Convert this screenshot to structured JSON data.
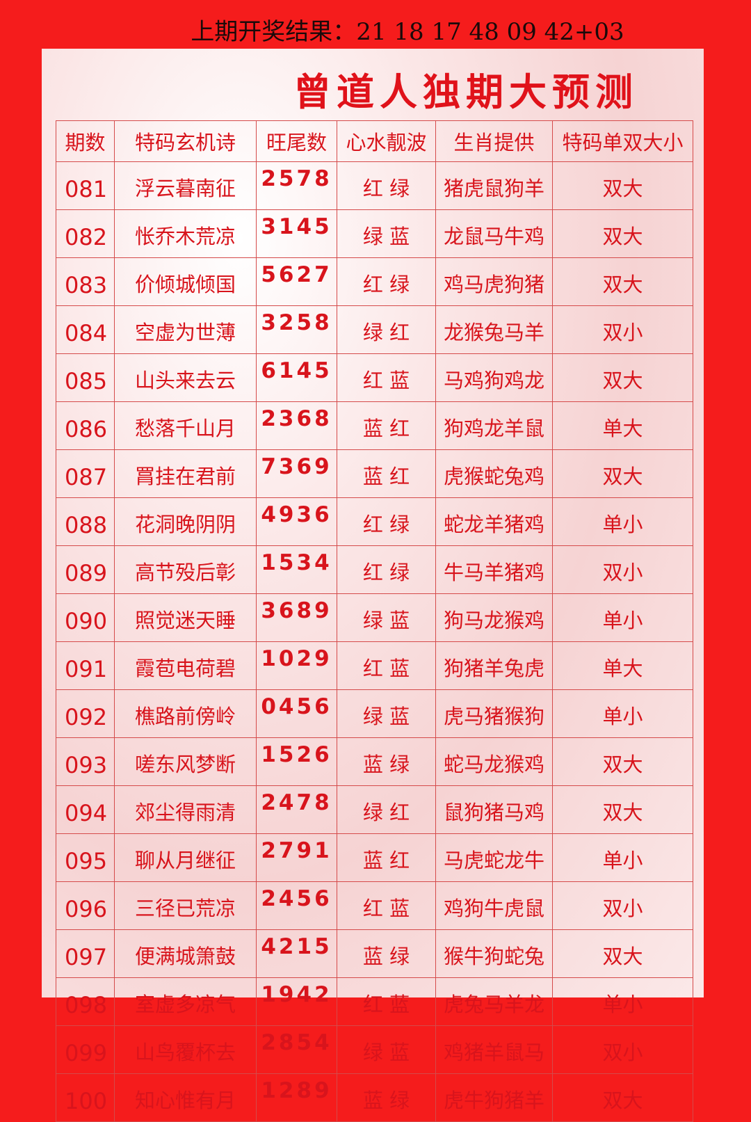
{
  "last_result": "上期开奖结果：21  18  17  48  09  42+03",
  "title": "曾道人独期大预测",
  "headers": [
    "期数",
    "特码玄机诗",
    "旺尾数",
    "心水靓波",
    "生肖提供",
    "特码单双大小"
  ],
  "rows": [
    [
      "081",
      "浮云暮南征",
      "2578",
      "红 绿",
      "猪虎鼠狗羊",
      "双大"
    ],
    [
      "082",
      "怅乔木荒凉",
      "3145",
      "绿 蓝",
      "龙鼠马牛鸡",
      "双大"
    ],
    [
      "083",
      "价倾城倾国",
      "5627",
      "红 绿",
      "鸡马虎狗猪",
      "双大"
    ],
    [
      "084",
      "空虚为世薄",
      "3258",
      "绿 红",
      "龙猴兔马羊",
      "双小"
    ],
    [
      "085",
      "山头来去云",
      "6145",
      "红 蓝",
      "马鸡狗鸡龙",
      "双大"
    ],
    [
      "086",
      "愁落千山月",
      "2368",
      "蓝 红",
      "狗鸡龙羊鼠",
      "单大"
    ],
    [
      "087",
      "罥挂在君前",
      "7369",
      "蓝 红",
      "虎猴蛇兔鸡",
      "双大"
    ],
    [
      "088",
      "花洞晚阴阴",
      "4936",
      "红 绿",
      "蛇龙羊猪鸡",
      "单小"
    ],
    [
      "089",
      "高节殁后彰",
      "1534",
      "红 绿",
      "牛马羊猪鸡",
      "双小"
    ],
    [
      "090",
      "照觉迷天睡",
      "3689",
      "绿 蓝",
      "狗马龙猴鸡",
      "单小"
    ],
    [
      "091",
      "霞苞电荷碧",
      "1029",
      "红 蓝",
      "狗猪羊兔虎",
      "单大"
    ],
    [
      "092",
      "樵路前傍岭",
      "0456",
      "绿 蓝",
      "虎马猪猴狗",
      "单小"
    ],
    [
      "093",
      "嗟东风梦断",
      "1526",
      "蓝 绿",
      "蛇马龙猴鸡",
      "双大"
    ],
    [
      "094",
      "郊尘得雨清",
      "2478",
      "绿 红",
      "鼠狗猪马鸡",
      "双大"
    ],
    [
      "095",
      "聊从月继征",
      "2791",
      "蓝 红",
      "马虎蛇龙牛",
      "单小"
    ],
    [
      "096",
      "三径已荒凉",
      "2456",
      "红 蓝",
      "鸡狗牛虎鼠",
      "双小"
    ],
    [
      "097",
      "便满城箫鼓",
      "4215",
      "蓝 绿",
      "猴牛狗蛇兔",
      "双大"
    ],
    [
      "098",
      "室虚多凉气",
      "1942",
      "红 蓝",
      "虎兔马羊龙",
      "单小"
    ],
    [
      "099",
      "山鸟覆杯去",
      "2854",
      "绿 蓝",
      "鸡猪羊鼠马",
      "双小"
    ],
    [
      "100",
      "知心惟有月",
      "1289",
      "蓝 绿",
      "虎牛狗猪羊",
      "双大"
    ]
  ]
}
